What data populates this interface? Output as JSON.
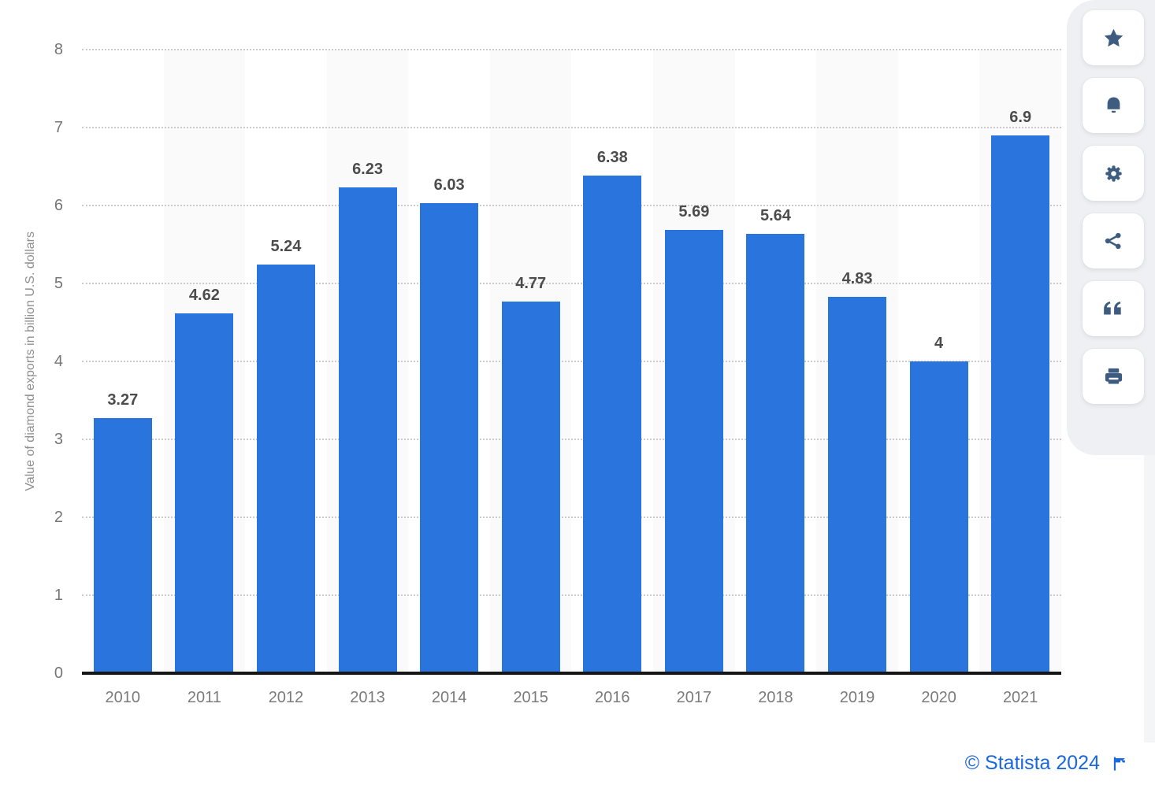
{
  "chart_data": {
    "type": "bar",
    "categories": [
      "2010",
      "2011",
      "2012",
      "2013",
      "2014",
      "2015",
      "2016",
      "2017",
      "2018",
      "2019",
      "2020",
      "2021"
    ],
    "values": [
      3.27,
      4.62,
      5.24,
      6.23,
      6.03,
      4.77,
      6.38,
      5.69,
      5.64,
      4.83,
      4,
      6.9
    ],
    "value_labels": [
      "3.27",
      "4.62",
      "5.24",
      "6.23",
      "6.03",
      "4.77",
      "6.38",
      "5.69",
      "5.64",
      "4.83",
      "4",
      "6.9"
    ],
    "title": "",
    "xlabel": "",
    "ylabel": "Value of diamond exports in billion U.S. dollars",
    "ylim": [
      0,
      8
    ],
    "yticks": [
      "0",
      "1",
      "2",
      "3",
      "4",
      "5",
      "6",
      "7",
      "8"
    ],
    "grid": "horizontal-dotted",
    "legend": "none",
    "bar_color": "#2a74de",
    "band_color": "#fafafa",
    "alternating_bands": "odd columns shaded"
  },
  "toolbar": {
    "buttons": [
      {
        "label": "favorite",
        "icon": "star-icon"
      },
      {
        "label": "notifications",
        "icon": "bell-icon"
      },
      {
        "label": "settings",
        "icon": "gear-icon"
      },
      {
        "label": "share",
        "icon": "share-icon"
      },
      {
        "label": "cite",
        "icon": "quote-icon"
      },
      {
        "label": "print",
        "icon": "print-icon"
      }
    ],
    "icon_color": "#3d5c80"
  },
  "footer": {
    "copyright": "© Statista 2024",
    "flag_icon": "flag-icon",
    "link_color": "#1b67e0"
  }
}
